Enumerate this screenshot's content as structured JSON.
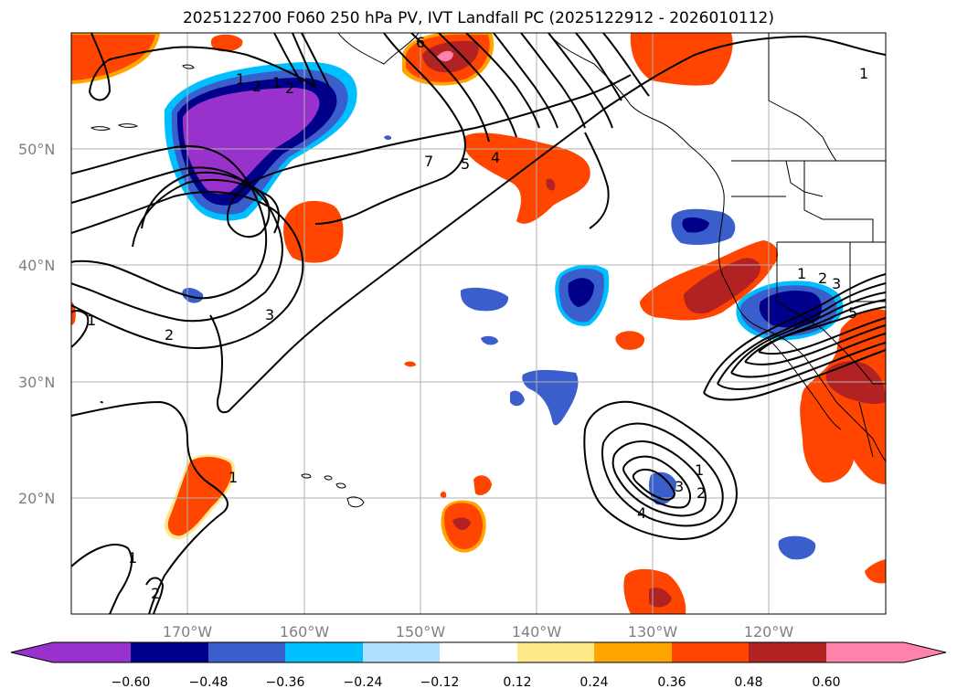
{
  "title": "2025122700 F060 250 hPa PV, IVT Landfall PC (2025122912 - 2026010112)",
  "lat_labels": [
    "50°N",
    "40°N",
    "30°N",
    "20°N"
  ],
  "lon_labels": [
    "170°W",
    "160°W",
    "150°W",
    "140°W",
    "130°W",
    "120°W"
  ],
  "colorbar": {
    "ticks": [
      "−0.60",
      "−0.48",
      "−0.36",
      "−0.24",
      "−0.12",
      "0.12",
      "0.24",
      "0.36",
      "0.48",
      "0.60"
    ],
    "colors": [
      "#9932cc",
      "#00008b",
      "#3a5fcd",
      "#00bfff",
      "#b0e0ff",
      "#ffffff",
      "#ffe88a",
      "#ffa500",
      "#ff4500",
      "#b22222",
      "#ff82ab"
    ]
  },
  "contour_labels": [
    "1",
    "2",
    "3",
    "7",
    "5",
    "4",
    "6",
    "1",
    "2",
    "1",
    "3",
    "2",
    "4",
    "1",
    "1",
    "2",
    "3",
    "5",
    "1",
    "1",
    "2",
    "1",
    "2"
  ],
  "colors": {
    "contour": "#000000",
    "grid": "#b0b0b0",
    "coast": "#000000"
  }
}
